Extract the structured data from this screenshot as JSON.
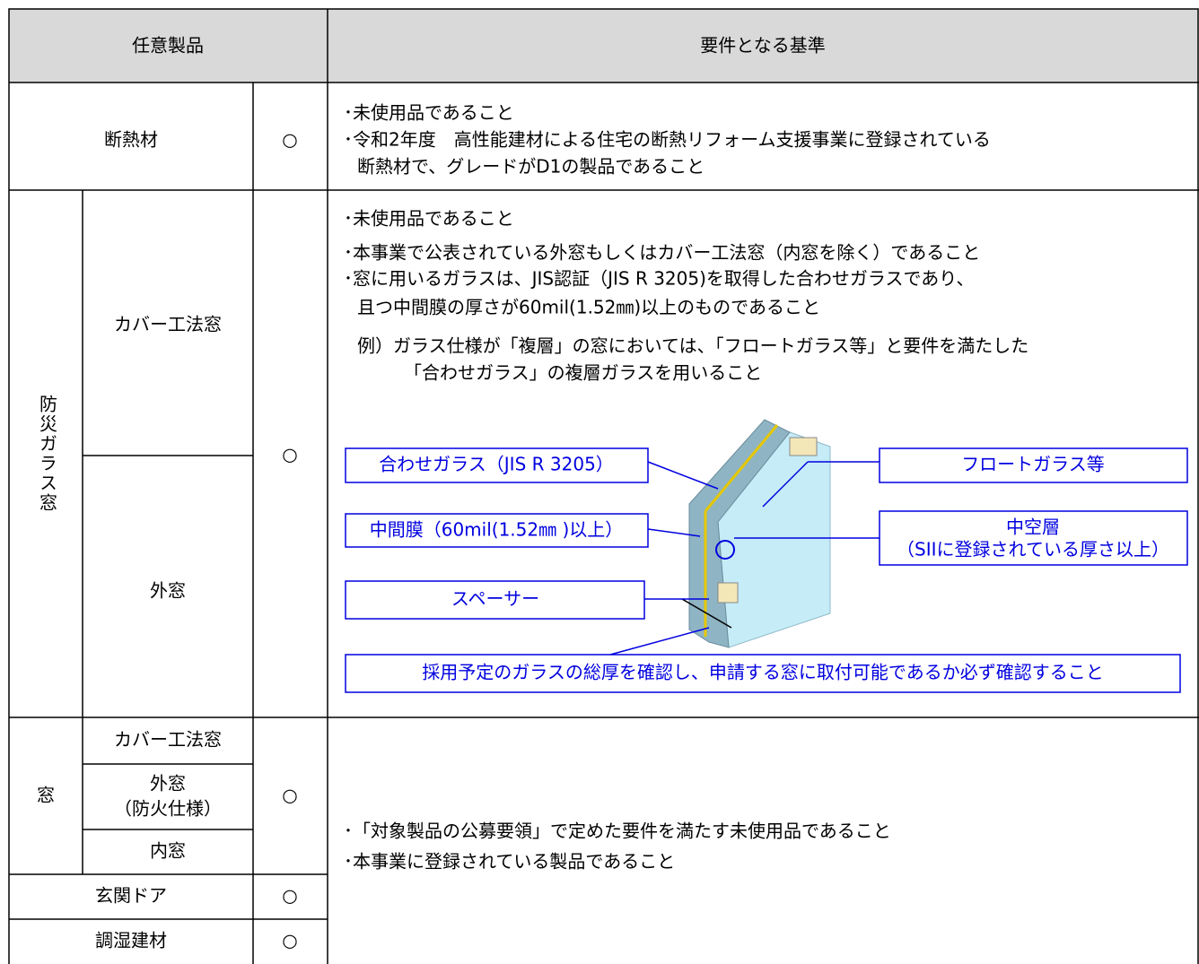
{
  "header": {
    "product": "任意製品",
    "criteria": "要件となる基準"
  },
  "insulation": {
    "product": "断熱材",
    "mark": "○",
    "criteria": [
      "･未使用品であること",
      "･令和2年度　高性能建材による住宅の断熱リフォーム支援事業に登録されている",
      "断熱材で、グレードがD1の製品であること"
    ]
  },
  "disaster_glass": {
    "group": "防災ガラス窓",
    "subproducts": [
      "カバー工法窓",
      "外窓"
    ],
    "mark": "○",
    "criteria": [
      "･未使用品であること",
      "･本事業で公表されている外窓もしくはカバー工法窓（内窓を除く）であること",
      "･窓に用いるガラスは、JIS認証（JIS R 3205)を取得した合わせガラスであり、",
      "且つ中間膜の厚さが60mil(1.52㎜)以上のものであること"
    ],
    "example": [
      "例）ガラス仕様が「複層」の窓においては、「フロートガラス等」と要件を満たした",
      "「合わせガラス」の複層ガラスを用いること"
    ],
    "diagram": {
      "laminated": "合わせガラス（JIS R 3205）",
      "float": "フロートガラス等",
      "interlayer": "中間膜（60mil(1.52㎜ )以上）",
      "hollow": [
        "中空層",
        "（SIIに登録されている厚さ以上）"
      ],
      "spacer": "スペーサー",
      "note": "採用予定のガラスの総厚を確認し、申請する窓に取付可能であるか必ず確認すること"
    }
  },
  "window": {
    "group": "窓",
    "subproducts": [
      "カバー工法窓",
      "外窓",
      "（防火仕様）",
      "内窓"
    ],
    "mark": "○"
  },
  "door": {
    "product": "玄関ドア",
    "mark": "○"
  },
  "humidity": {
    "product": "調湿建材",
    "mark": "○"
  },
  "other_criteria": [
    "･「対象製品の公募要領」で定めた要件を満たす未使用品であること",
    "･本事業に登録されている製品であること"
  ]
}
